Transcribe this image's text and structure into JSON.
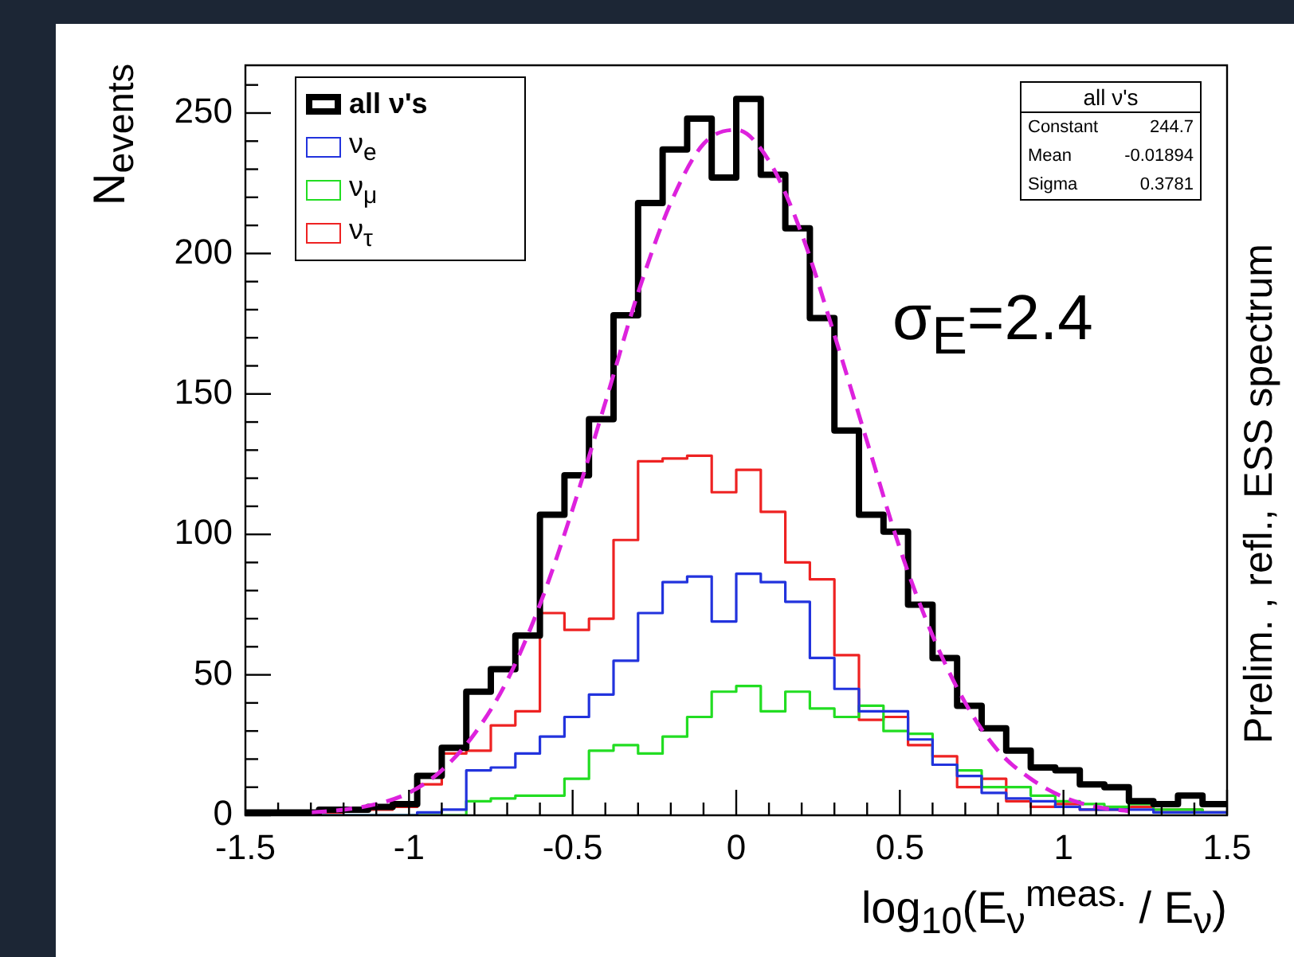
{
  "chart_data": {
    "type": "histogram",
    "xlabel": "log$_{10}$(E$_{ν}$$^{meas.}$ / E$_{ν}$)",
    "ylabel": "N$_{events}$",
    "bins": [
      -1.5,
      -1.425,
      -1.35,
      -1.275,
      -1.2,
      -1.125,
      -1.05,
      -0.975,
      -0.9,
      -0.825,
      -0.75,
      -0.675,
      -0.6,
      -0.525,
      -0.45,
      -0.375,
      -0.3,
      -0.225,
      -0.15,
      -0.075,
      0,
      0.075,
      0.15,
      0.225,
      0.3,
      0.375,
      0.45,
      0.525,
      0.6,
      0.675,
      0.75,
      0.825,
      0.9,
      0.975,
      1.05,
      1.125,
      1.2,
      1.275,
      1.35,
      1.425,
      1.5
    ],
    "series": [
      {
        "name": "all ν's",
        "color": "#000000",
        "values": [
          1,
          1,
          1,
          2,
          2,
          3,
          4,
          14,
          24,
          44,
          52,
          64,
          107,
          121,
          141,
          178,
          218,
          237,
          248,
          227,
          255,
          228,
          209,
          177,
          137,
          107,
          101,
          75,
          56,
          39,
          31,
          23,
          17,
          16,
          11,
          10,
          5,
          4,
          7,
          4
        ]
      },
      {
        "name": "ν$_{e}$",
        "color": "#2233dd",
        "values": [
          0,
          0,
          0,
          0,
          0,
          0,
          0,
          1,
          2,
          16,
          17,
          22,
          28,
          35,
          43,
          55,
          72,
          83,
          85,
          69,
          86,
          83,
          76,
          56,
          45,
          37,
          37,
          27,
          18,
          14,
          8,
          6,
          5,
          3,
          2,
          2,
          2,
          1,
          1,
          1
        ]
      },
      {
        "name": "ν$_{μ}$",
        "color": "#22dd22",
        "values": [
          0,
          0,
          0,
          0,
          0,
          0,
          0,
          0,
          0,
          5,
          6,
          7,
          7,
          13,
          23,
          25,
          22,
          28,
          35,
          44,
          46,
          37,
          44,
          38,
          35,
          39,
          30,
          29,
          18,
          16,
          10,
          10,
          7,
          5,
          4,
          3,
          4,
          2,
          2,
          1
        ]
      },
      {
        "name": "ν$_{τ}$",
        "color": "#ee2222",
        "values": [
          1,
          1,
          1,
          1,
          2,
          2,
          3,
          11,
          22,
          23,
          32,
          37,
          72,
          66,
          70,
          98,
          126,
          127,
          128,
          115,
          123,
          108,
          90,
          84,
          57,
          34,
          35,
          25,
          21,
          10,
          13,
          5,
          3,
          4,
          2,
          2,
          3,
          2,
          2,
          1
        ]
      },
      {
        "type": "line",
        "color": "#dd22dd",
        "line_style": "dashed",
        "x": [
          -1.3,
          -1.2,
          -1.1,
          -1.0,
          -0.9,
          -0.8,
          -0.7,
          -0.6,
          -0.5,
          -0.4,
          -0.3,
          -0.2,
          -0.1,
          0,
          0.1,
          0.2,
          0.3,
          0.4,
          0.5,
          0.6,
          0.7,
          0.8,
          0.9,
          1.0,
          1.1,
          1.2
        ],
        "values": [
          1,
          2,
          4,
          8,
          16,
          29,
          48,
          75,
          109,
          147,
          186,
          218,
          239,
          244,
          233,
          207,
          171,
          133,
          95,
          64,
          40,
          23,
          13,
          6.5,
          3,
          1.5
        ]
      }
    ],
    "xlim": [
      -1.5,
      1.5
    ],
    "ylim": [
      0,
      267
    ],
    "xticks": [
      -1.5,
      {
        "value": -1.4,
        "label": null
      },
      {
        "value": -1.3,
        "label": null
      },
      {
        "value": -1.2,
        "label": null
      },
      {
        "value": -1.1,
        "label": null
      },
      -1,
      {
        "value": -0.9,
        "label": null
      },
      {
        "value": -0.8,
        "label": null
      },
      {
        "value": -0.7,
        "label": null
      },
      {
        "value": -0.6,
        "label": null
      },
      -0.5,
      {
        "value": -0.4,
        "label": null
      },
      {
        "value": -0.3,
        "label": null
      },
      {
        "value": -0.2,
        "label": null
      },
      {
        "value": -0.1,
        "label": null
      },
      0,
      {
        "value": 0.1,
        "label": null
      },
      {
        "value": 0.2,
        "label": null
      },
      {
        "value": 0.3,
        "label": null
      },
      {
        "value": 0.4,
        "label": null
      },
      0.5,
      {
        "value": 0.6,
        "label": null
      },
      {
        "value": 0.7,
        "label": null
      },
      {
        "value": 0.8,
        "label": null
      },
      {
        "value": 0.9,
        "label": null
      },
      1,
      {
        "value": 1.1,
        "label": null
      },
      {
        "value": 1.2,
        "label": null
      },
      {
        "value": 1.3,
        "label": null
      },
      {
        "value": 1.4,
        "label": null
      },
      1.5
    ],
    "yticks": [
      0,
      {
        "value": 10,
        "label": null
      },
      {
        "value": 20,
        "label": null
      },
      {
        "value": 30,
        "label": null
      },
      {
        "value": 40,
        "label": null
      },
      50,
      {
        "value": 60,
        "label": null
      },
      {
        "value": 70,
        "label": null
      },
      {
        "value": 80,
        "label": null
      },
      {
        "value": 90,
        "label": null
      },
      100,
      {
        "value": 110,
        "label": null
      },
      {
        "value": 120,
        "label": null
      },
      {
        "value": 130,
        "label": null
      },
      {
        "value": 140,
        "label": null
      },
      150,
      {
        "value": 160,
        "label": null
      },
      {
        "value": 170,
        "label": null
      },
      {
        "value": 180,
        "label": null
      },
      {
        "value": 190,
        "label": null
      },
      200,
      {
        "value": 210,
        "label": null
      },
      {
        "value": 220,
        "label": null
      },
      {
        "value": 230,
        "label": null
      },
      {
        "value": 240,
        "label": null
      },
      250,
      {
        "value": 260,
        "label": null
      }
    ],
    "grid": false,
    "legend": "top left",
    "annotations": [
      "all ν's",
      "Constant 244.7",
      "Mean -0.01894",
      "Sigma 0.3781",
      "σ$_{E}$=2.4",
      "Prelim. , refl., ESS spectrum"
    ]
  }
}
